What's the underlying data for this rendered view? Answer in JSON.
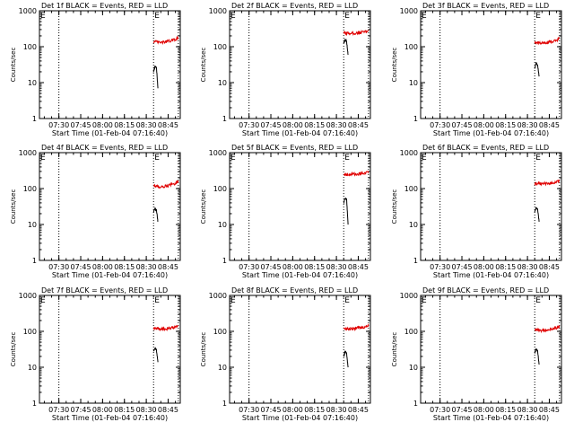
{
  "colors": {
    "events": "#000000",
    "lld": "#e00000",
    "axes": "#000000"
  },
  "chart_data": [
    {
      "type": "line",
      "title": "Det 1f BLACK = Events, RED = LLD",
      "ylabel": "Counts/sec",
      "xlabel": "Start Time (01-Feb-04 07:16:40)",
      "scale_y": "log",
      "ylim": [
        1,
        1000
      ],
      "xlim": [
        "07:16:40",
        "08:53:20"
      ],
      "x_ticks": [
        "07:30",
        "07:45",
        "08:00",
        "08:15",
        "08:30",
        "08:45"
      ],
      "y_ticks": [
        "1",
        "10",
        "100",
        "1000"
      ],
      "markers": [
        {
          "label": "E",
          "time": "07:16:40"
        },
        {
          "label": "E",
          "time": "08:35"
        }
      ],
      "vlines": [
        "07:30",
        "08:35",
        "08:52"
      ],
      "series": [
        {
          "name": "Events",
          "color": "black",
          "x": [
            "08:35",
            "08:36",
            "08:37",
            "08:38"
          ],
          "values": [
            20,
            28,
            26,
            7
          ]
        },
        {
          "name": "LLD",
          "color": "red",
          "x": [
            "08:35",
            "08:40",
            "08:45",
            "08:50",
            "08:52"
          ],
          "values": [
            140,
            130,
            140,
            160,
            175
          ]
        }
      ]
    },
    {
      "type": "line",
      "title": "Det 2f BLACK = Events, RED = LLD",
      "ylabel": "Counts/sec",
      "xlabel": "Start Time (01-Feb-04 07:16:40)",
      "scale_y": "log",
      "ylim": [
        1,
        1000
      ],
      "xlim": [
        "07:16:40",
        "08:53:20"
      ],
      "x_ticks": [
        "07:30",
        "07:45",
        "08:00",
        "08:15",
        "08:30",
        "08:45"
      ],
      "y_ticks": [
        "1",
        "10",
        "100",
        "1000"
      ],
      "markers": [
        {
          "label": "E",
          "time": "07:16:40"
        },
        {
          "label": "E",
          "time": "08:35"
        }
      ],
      "vlines": [
        "07:30",
        "08:35",
        "08:52"
      ],
      "series": [
        {
          "name": "Events",
          "color": "black",
          "x": [
            "08:35",
            "08:36",
            "08:37",
            "08:38"
          ],
          "values": [
            130,
            150,
            140,
            60
          ]
        },
        {
          "name": "LLD",
          "color": "red",
          "x": [
            "08:35",
            "08:40",
            "08:45",
            "08:50",
            "08:52"
          ],
          "values": [
            240,
            235,
            240,
            260,
            280
          ]
        }
      ]
    },
    {
      "type": "line",
      "title": "Det 3f BLACK = Events, RED = LLD",
      "ylabel": "Counts/sec",
      "xlabel": "Start Time (01-Feb-04 07:16:40)",
      "scale_y": "log",
      "ylim": [
        1,
        1000
      ],
      "xlim": [
        "07:16:40",
        "08:53:20"
      ],
      "x_ticks": [
        "07:30",
        "07:45",
        "08:00",
        "08:15",
        "08:30",
        "08:45"
      ],
      "y_ticks": [
        "1",
        "10",
        "100",
        "1000"
      ],
      "markers": [
        {
          "label": "E",
          "time": "07:16:40"
        },
        {
          "label": "E",
          "time": "08:35"
        }
      ],
      "vlines": [
        "07:30",
        "08:35",
        "08:52"
      ],
      "series": [
        {
          "name": "Events",
          "color": "black",
          "x": [
            "08:35",
            "08:36",
            "08:37",
            "08:38"
          ],
          "values": [
            25,
            35,
            30,
            15
          ]
        },
        {
          "name": "LLD",
          "color": "red",
          "x": [
            "08:35",
            "08:40",
            "08:45",
            "08:50",
            "08:52"
          ],
          "values": [
            130,
            125,
            135,
            150,
            170
          ]
        }
      ]
    },
    {
      "type": "line",
      "title": "Det 4f BLACK = Events, RED = LLD",
      "ylabel": "Counts/sec",
      "xlabel": "Start Time (01-Feb-04 07:16:40)",
      "scale_y": "log",
      "ylim": [
        1,
        1000
      ],
      "xlim": [
        "07:16:40",
        "08:53:20"
      ],
      "x_ticks": [
        "07:30",
        "07:45",
        "08:00",
        "08:15",
        "08:30",
        "08:45"
      ],
      "y_ticks": [
        "1",
        "10",
        "100",
        "1000"
      ],
      "markers": [
        {
          "label": "E",
          "time": "07:16:40"
        },
        {
          "label": "E",
          "time": "08:35"
        }
      ],
      "vlines": [
        "07:30",
        "08:35",
        "08:52"
      ],
      "series": [
        {
          "name": "Events",
          "color": "black",
          "x": [
            "08:35",
            "08:36",
            "08:37",
            "08:38"
          ],
          "values": [
            22,
            28,
            25,
            12
          ]
        },
        {
          "name": "LLD",
          "color": "red",
          "x": [
            "08:35",
            "08:40",
            "08:45",
            "08:50",
            "08:52"
          ],
          "values": [
            120,
            110,
            120,
            140,
            160
          ]
        }
      ]
    },
    {
      "type": "line",
      "title": "Det 5f BLACK = Events, RED = LLD",
      "ylabel": "Counts/sec",
      "xlabel": "Start Time (01-Feb-04 07:16:40)",
      "scale_y": "log",
      "ylim": [
        1,
        1000
      ],
      "xlim": [
        "07:16:40",
        "08:53:20"
      ],
      "x_ticks": [
        "07:30",
        "07:45",
        "08:00",
        "08:15",
        "08:30",
        "08:45"
      ],
      "y_ticks": [
        "1",
        "10",
        "100",
        "1000"
      ],
      "markers": [
        {
          "label": "E",
          "time": "07:16:40"
        },
        {
          "label": "E",
          "time": "08:35"
        }
      ],
      "vlines": [
        "07:30",
        "08:35",
        "08:52"
      ],
      "series": [
        {
          "name": "Events",
          "color": "black",
          "x": [
            "08:35",
            "08:36",
            "08:37",
            "08:38"
          ],
          "values": [
            40,
            55,
            50,
            10
          ]
        },
        {
          "name": "LLD",
          "color": "red",
          "x": [
            "08:35",
            "08:40",
            "08:45",
            "08:50",
            "08:52"
          ],
          "values": [
            250,
            250,
            255,
            265,
            290
          ]
        }
      ]
    },
    {
      "type": "line",
      "title": "Det 6f BLACK = Events, RED = LLD",
      "ylabel": "Counts/sec",
      "xlabel": "Start Time (01-Feb-04 07:16:40)",
      "scale_y": "log",
      "ylim": [
        1,
        1000
      ],
      "xlim": [
        "07:16:40",
        "08:53:20"
      ],
      "x_ticks": [
        "07:30",
        "07:45",
        "08:00",
        "08:15",
        "08:30",
        "08:45"
      ],
      "y_ticks": [
        "1",
        "10",
        "100",
        "1000"
      ],
      "markers": [
        {
          "label": "E",
          "time": "07:16:40"
        },
        {
          "label": "E",
          "time": "08:35"
        }
      ],
      "vlines": [
        "07:30",
        "08:35",
        "08:52"
      ],
      "series": [
        {
          "name": "Events",
          "color": "black",
          "x": [
            "08:35",
            "08:36",
            "08:37",
            "08:38"
          ],
          "values": [
            22,
            30,
            26,
            12
          ]
        },
        {
          "name": "LLD",
          "color": "red",
          "x": [
            "08:35",
            "08:40",
            "08:45",
            "08:50",
            "08:52"
          ],
          "values": [
            140,
            135,
            140,
            150,
            165
          ]
        }
      ]
    },
    {
      "type": "line",
      "title": "Det 7f BLACK = Events, RED = LLD",
      "ylabel": "Counts/sec",
      "xlabel": "Start Time (01-Feb-04 07:16:40)",
      "scale_y": "log",
      "ylim": [
        1,
        1000
      ],
      "xlim": [
        "07:16:40",
        "08:53:20"
      ],
      "x_ticks": [
        "07:30",
        "07:45",
        "08:00",
        "08:15",
        "08:30",
        "08:45"
      ],
      "y_ticks": [
        "1",
        "10",
        "100",
        "1000"
      ],
      "markers": [
        {
          "label": "E",
          "time": "07:16:40"
        },
        {
          "label": "E",
          "time": "08:35"
        }
      ],
      "vlines": [
        "07:30",
        "08:35",
        "08:52"
      ],
      "series": [
        {
          "name": "Events",
          "color": "black",
          "x": [
            "08:35",
            "08:36",
            "08:37",
            "08:38"
          ],
          "values": [
            28,
            35,
            30,
            14
          ]
        },
        {
          "name": "LLD",
          "color": "red",
          "x": [
            "08:35",
            "08:40",
            "08:45",
            "08:50",
            "08:52"
          ],
          "values": [
            120,
            115,
            120,
            130,
            135
          ]
        }
      ]
    },
    {
      "type": "line",
      "title": "Det 8f BLACK = Events, RED = LLD",
      "ylabel": "Counts/sec",
      "xlabel": "Start Time (01-Feb-04 07:16:40)",
      "scale_y": "log",
      "ylim": [
        1,
        1000
      ],
      "xlim": [
        "07:16:40",
        "08:53:20"
      ],
      "x_ticks": [
        "07:30",
        "07:45",
        "08:00",
        "08:15",
        "08:30",
        "08:45"
      ],
      "y_ticks": [
        "1",
        "10",
        "100",
        "1000"
      ],
      "markers": [
        {
          "label": "E",
          "time": "07:16:40"
        },
        {
          "label": "E",
          "time": "08:35"
        }
      ],
      "vlines": [
        "07:30",
        "08:35",
        "08:52"
      ],
      "series": [
        {
          "name": "Events",
          "color": "black",
          "x": [
            "08:35",
            "08:36",
            "08:37",
            "08:38"
          ],
          "values": [
            20,
            28,
            24,
            10
          ]
        },
        {
          "name": "LLD",
          "color": "red",
          "x": [
            "08:35",
            "08:40",
            "08:45",
            "08:50",
            "08:52"
          ],
          "values": [
            120,
            115,
            125,
            135,
            150
          ]
        }
      ]
    },
    {
      "type": "line",
      "title": "Det 9f BLACK = Events, RED = LLD",
      "ylabel": "Counts/sec",
      "xlabel": "Start Time (01-Feb-04 07:16:40)",
      "scale_y": "log",
      "ylim": [
        1,
        1000
      ],
      "xlim": [
        "07:16:40",
        "08:53:20"
      ],
      "x_ticks": [
        "07:30",
        "07:45",
        "08:00",
        "08:15",
        "08:30",
        "08:45"
      ],
      "y_ticks": [
        "1",
        "10",
        "100",
        "1000"
      ],
      "markers": [
        {
          "label": "E",
          "time": "07:16:40"
        },
        {
          "label": "E",
          "time": "08:35"
        }
      ],
      "vlines": [
        "07:30",
        "08:35",
        "08:52"
      ],
      "series": [
        {
          "name": "Events",
          "color": "black",
          "x": [
            "08:35",
            "08:36",
            "08:37",
            "08:38"
          ],
          "values": [
            25,
            32,
            28,
            12
          ]
        },
        {
          "name": "LLD",
          "color": "red",
          "x": [
            "08:35",
            "08:40",
            "08:45",
            "08:50",
            "08:52"
          ],
          "values": [
            110,
            105,
            115,
            125,
            135
          ]
        }
      ]
    }
  ]
}
